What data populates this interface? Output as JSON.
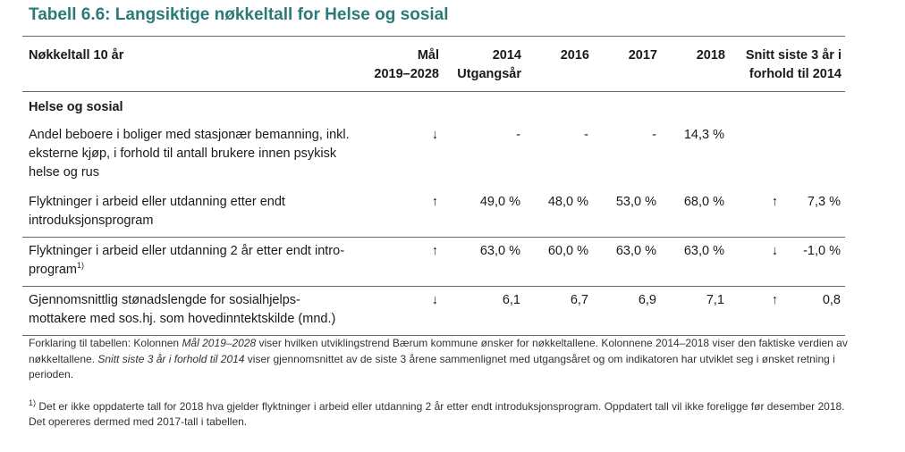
{
  "title": "Tabell 6.6: Langsiktige nøkkeltall for Helse og sosial",
  "headers": {
    "col1": "Nøkkeltall 10 år",
    "goal_1": "Mål",
    "goal_2": "2019–2028",
    "y2014_1": "2014",
    "y2014_2": "Utgangsår",
    "y2016": "2016",
    "y2017": "2017",
    "y2018": "2018",
    "avg_1": "Snitt siste 3 år i",
    "avg_2": "forhold til 2014"
  },
  "section": "Helse og sosial",
  "rows": [
    {
      "label": "Andel beboere i boliger med stasjonær bemanning, inkl. eksterne kjøp, i forhold til antall brukere innen psykisk helse og rus",
      "goal": "↓",
      "y2014": "-",
      "y2016": "-",
      "y2017": "-",
      "y2018": "14,3 %",
      "avg_arrow": "",
      "avg": ""
    },
    {
      "label": "Flyktninger i arbeid eller utdanning etter endt introduksjonsprogram",
      "goal": "↑",
      "y2014": "49,0 %",
      "y2016": "48,0 %",
      "y2017": "53,0 %",
      "y2018": "68,0 %",
      "avg_arrow": "↑",
      "avg": "7,3 %"
    },
    {
      "label": "Flyktninger i arbeid eller utdanning 2 år etter endt intro-program",
      "sup": "1)",
      "goal": "↑",
      "y2014": "63,0 %",
      "y2016": "60,0 %",
      "y2017": "63,0 %",
      "y2018": "63,0 %",
      "avg_arrow": "↓",
      "avg": "-1,0 %"
    },
    {
      "label": "Gjennomsnittlig stønadslengde for sosialhjelps-mottakere med sos.hj. som hovedinntektskilde (mnd.)",
      "goal": "↓",
      "y2014": "6,1",
      "y2016": "6,7",
      "y2017": "6,9",
      "y2018": "7,1",
      "avg_arrow": "↑",
      "avg": "0,8"
    }
  ],
  "notes": {
    "p1_a": "Forklaring til tabellen: Kolonnen ",
    "p1_b": "Mål 2019–2028",
    "p1_c": " viser hvilken utviklingstrend Bærum kommune ønsker for nøkkeltallene. Kolonnene 2014–2018 viser den faktiske verdien av nøkkeltallene. ",
    "p1_d": "Snitt siste 3 år i forhold til 2014",
    "p1_e": " viser gjennomsnittet av de siste 3 årene sammenlignet med utgangsåret og om indikatoren har utviklet seg i ønsket retning i perioden.",
    "p2_sup": "1)",
    "p2": " Det er ikke oppdaterte tall for 2018 hva gjelder flyktninger i arbeid eller utdanning 2 år etter endt introduksjonsprogram. Oppdatert tall vil ikke foreligge før desember 2018. Det opereres dermed med 2017-tall i tabellen."
  }
}
